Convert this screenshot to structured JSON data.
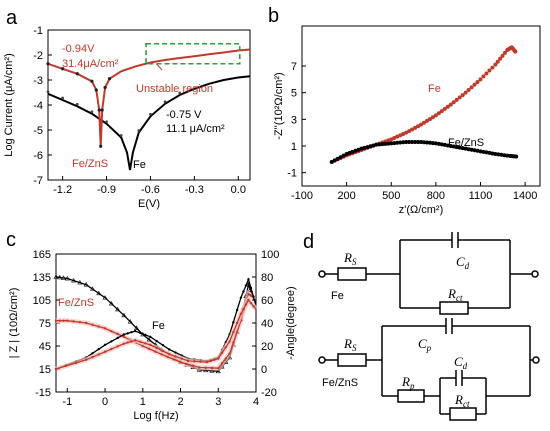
{
  "chart_data": [
    {
      "panel": "a",
      "type": "line",
      "xlabel": "E(V)",
      "ylabel": "Log Current (μA/cm²)",
      "xlim": [
        -1.3,
        0.08
      ],
      "ylim": [
        -7,
        -1
      ],
      "xticks": [
        "-1.2",
        "-0.9",
        "-0.6",
        "-0.3",
        "0.0"
      ],
      "yticks": [
        "-1",
        "-2",
        "-3",
        "-4",
        "-5",
        "-6",
        "-7"
      ],
      "series": [
        {
          "name": "Fe",
          "color": "#000000",
          "x": [
            -1.3,
            -1.2,
            -1.1,
            -1.0,
            -0.9,
            -0.8,
            -0.76,
            -0.74,
            -0.72,
            -0.68,
            -0.6,
            -0.5,
            -0.4,
            -0.3,
            -0.2,
            -0.1,
            0.0,
            0.08
          ],
          "y": [
            -3.55,
            -3.8,
            -4.05,
            -4.35,
            -4.75,
            -5.3,
            -5.9,
            -6.6,
            -5.9,
            -5.1,
            -4.45,
            -3.95,
            -3.6,
            -3.35,
            -3.15,
            -3.0,
            -2.9,
            -2.85
          ]
        },
        {
          "name": "Fe/ZnS",
          "color": "#c0392b",
          "x": [
            -1.3,
            -1.2,
            -1.1,
            -1.0,
            -0.97,
            -0.95,
            -0.94,
            -0.93,
            -0.91,
            -0.88,
            -0.8,
            -0.7,
            -0.6,
            -0.5,
            -0.4,
            -0.3,
            -0.2,
            -0.1,
            0.0,
            0.08
          ],
          "y": [
            -2.35,
            -2.55,
            -2.75,
            -3.05,
            -3.4,
            -4.2,
            -5.65,
            -4.2,
            -3.3,
            -2.95,
            -2.65,
            -2.45,
            -2.3,
            -2.2,
            -2.12,
            -2.05,
            -1.97,
            -1.9,
            -1.82,
            -1.78
          ]
        }
      ],
      "annotations": [
        {
          "text": "-0.94V",
          "color": "#c0392b"
        },
        {
          "text": "31.4μA/cm²",
          "color": "#c0392b"
        },
        {
          "text": "Unstable region",
          "color": "#c0392b"
        },
        {
          "text": "-0.75 V",
          "color": "#000000"
        },
        {
          "text": "11.1 μA/cm²",
          "color": "#000000"
        },
        {
          "text": "Fe/ZnS",
          "color": "#c0392b"
        },
        {
          "text": "Fe",
          "color": "#000000"
        }
      ]
    },
    {
      "panel": "b",
      "type": "scatter",
      "xlabel": "z'(Ω/cm²)",
      "ylabel": "-Z''(10²Ω/cm²)",
      "xlim": [
        -100,
        1500
      ],
      "ylim": [
        -2,
        10
      ],
      "xticks": [
        "-100",
        "200",
        "500",
        "800",
        "1100",
        "1400"
      ],
      "yticks": [
        "-1",
        "1",
        "3",
        "5",
        "7"
      ],
      "series": [
        {
          "name": "Fe",
          "color": "#c0392b",
          "x": [
            100,
            200,
            300,
            400,
            500,
            600,
            700,
            800,
            900,
            1000,
            1100,
            1200,
            1280,
            1310,
            1340
          ],
          "y": [
            -0.2,
            0.3,
            0.7,
            1.1,
            1.5,
            2.0,
            2.6,
            3.3,
            4.1,
            5.0,
            6.0,
            7.1,
            8.2,
            8.4,
            8.0
          ]
        },
        {
          "name": "Fe/ZnS",
          "color": "#000000",
          "x": [
            100,
            200,
            300,
            400,
            500,
            600,
            700,
            800,
            900,
            1000,
            1100,
            1200,
            1300,
            1350
          ],
          "y": [
            -0.2,
            0.4,
            0.8,
            1.1,
            1.2,
            1.3,
            1.3,
            1.2,
            1.0,
            0.8,
            0.6,
            0.4,
            0.25,
            0.2
          ]
        }
      ],
      "annotations": [
        {
          "text": "Fe",
          "color": "#c0392b"
        },
        {
          "text": "Fe/ZnS",
          "color": "#000000"
        }
      ]
    },
    {
      "panel": "c",
      "type": "line",
      "xlabel": "Log f(Hz)",
      "ylabel": "| Z | (10Ω/cm²)",
      "y2label": "-Angle(degree)",
      "xlim": [
        -1.3,
        4
      ],
      "ylim": [
        -15,
        165
      ],
      "y2lim": [
        -20,
        100
      ],
      "xticks": [
        "-1",
        "0",
        "1",
        "2",
        "3",
        "4"
      ],
      "yticks": [
        "165",
        "135",
        "105",
        "75",
        "45",
        "15",
        "-15"
      ],
      "y2ticks": [
        "100",
        "80",
        "60",
        "40",
        "20",
        "0",
        "-20"
      ],
      "series": [
        {
          "name": "Fe |Z|",
          "color": "#000000",
          "x": [
            -1.3,
            -1.0,
            -0.5,
            0.0,
            0.5,
            1.0,
            1.5,
            2.0,
            2.5,
            3.0,
            3.3,
            3.6,
            3.8,
            3.95
          ],
          "y": [
            135,
            133,
            125,
            108,
            85,
            60,
            40,
            24,
            14,
            12,
            30,
            80,
            125,
            105
          ]
        },
        {
          "name": "Fe/ZnS |Z|",
          "color": "#c0392b",
          "x": [
            -1.3,
            -1.0,
            -0.5,
            0.0,
            0.5,
            1.0,
            1.5,
            2.0,
            2.5,
            3.0,
            3.3,
            3.6,
            3.8,
            3.95
          ],
          "y": [
            78,
            78,
            75,
            68,
            57,
            45,
            34,
            24,
            17,
            16,
            35,
            78,
            113,
            108
          ]
        },
        {
          "name": "Fe Angle",
          "color": "#000000",
          "x": [
            -1.3,
            -0.5,
            0.0,
            0.5,
            0.8,
            1.2,
            1.7,
            2.2,
            2.7,
            3.0,
            3.3,
            3.6,
            3.8,
            4.0
          ],
          "y": [
            0,
            10,
            21,
            30,
            33,
            28,
            17,
            9,
            7,
            10,
            30,
            62,
            78,
            55
          ]
        },
        {
          "name": "Fe/ZnS Angle",
          "color": "#c0392b",
          "x": [
            -1.3,
            -0.5,
            0.0,
            0.5,
            0.8,
            1.2,
            1.7,
            2.2,
            2.7,
            3.0,
            3.3,
            3.6,
            3.8,
            4.0
          ],
          "y": [
            0,
            8,
            15,
            22,
            25,
            21,
            13,
            7,
            6,
            9,
            24,
            48,
            60,
            52
          ]
        }
      ],
      "annotations": [
        {
          "text": "Fe/ZnS",
          "color": "#c0392b"
        },
        {
          "text": "Fe",
          "color": "#000000"
        }
      ]
    }
  ],
  "panels": {
    "a": "a",
    "b": "b",
    "c": "c",
    "d": "d"
  },
  "circuit": {
    "fe_label": "Fe",
    "fezns_label": "Fe/ZnS",
    "components": [
      "R_S",
      "C_d",
      "R_ct",
      "R_S",
      "C_p",
      "C_d",
      "R_p",
      "R_ct"
    ]
  }
}
